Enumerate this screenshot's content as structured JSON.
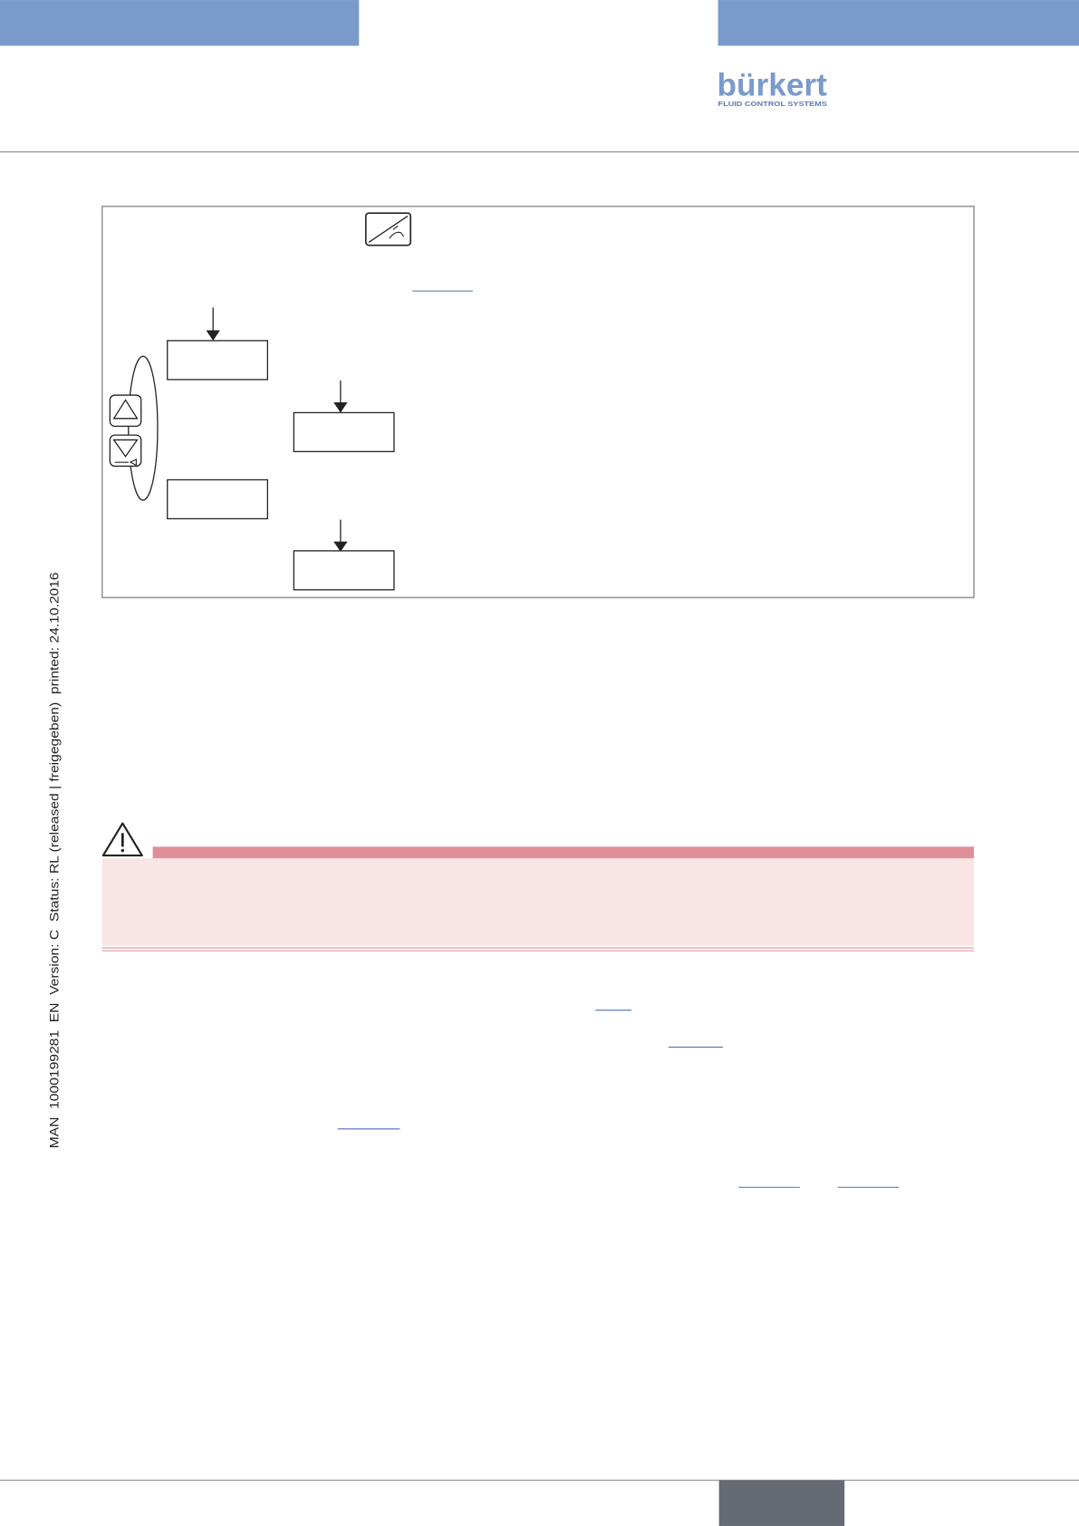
{
  "header": {
    "logo": "bürkert",
    "tagline": "FLUID CONTROL SYSTEMS"
  },
  "side_note": "MAN  1000199281  EN  Version: C  Status: RL (released | freigegeben)  printed: 24.10.2016"
}
